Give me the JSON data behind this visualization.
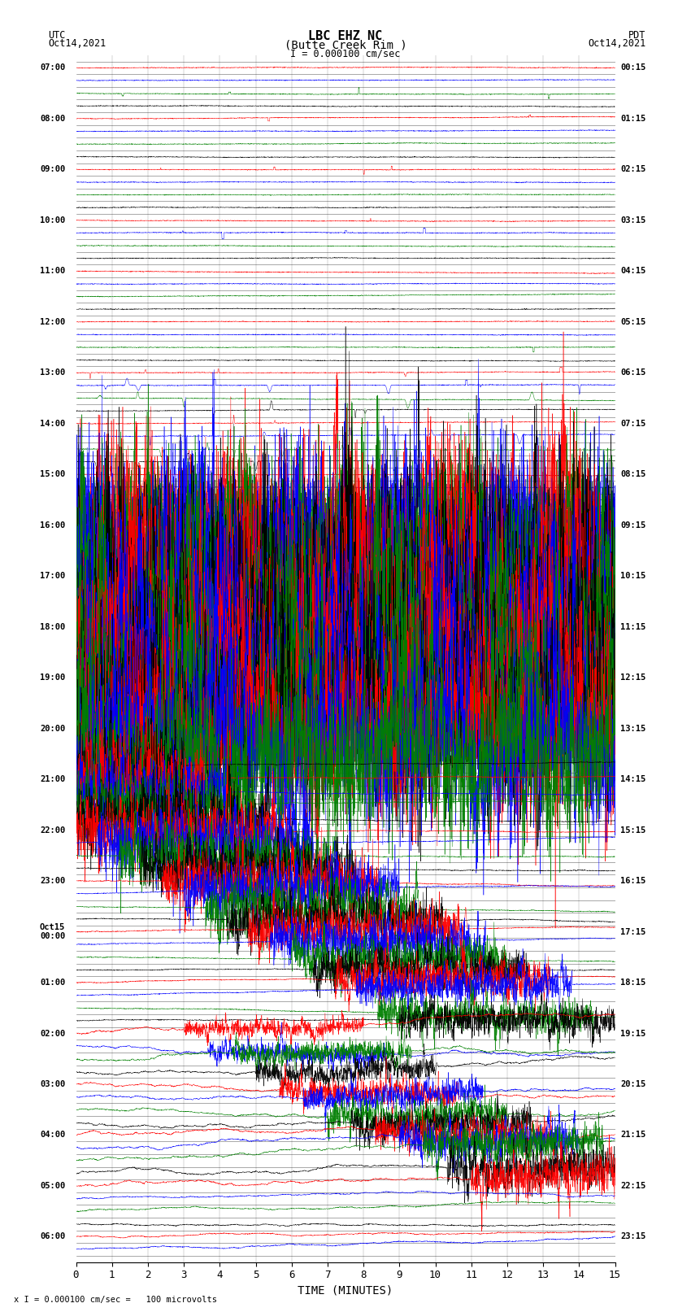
{
  "title_line1": "LBC EHZ NC",
  "title_line2": "(Butte Creek Rim )",
  "scale_label": "I = 0.000100 cm/sec",
  "left_header": "UTC\nOct14,2021",
  "right_header": "PDT\nOct14,2021",
  "footer_note": "x I = 0.000100 cm/sec =   100 microvolts",
  "xlabel": "TIME (MINUTES)",
  "left_times": [
    "07:00",
    "",
    "",
    "",
    "08:00",
    "",
    "",
    "",
    "09:00",
    "",
    "",
    "",
    "10:00",
    "",
    "",
    "",
    "11:00",
    "",
    "",
    "",
    "12:00",
    "",
    "",
    "",
    "13:00",
    "",
    "",
    "",
    "14:00",
    "",
    "",
    "",
    "15:00",
    "",
    "",
    "",
    "16:00",
    "",
    "",
    "",
    "17:00",
    "",
    "",
    "",
    "18:00",
    "",
    "",
    "",
    "19:00",
    "",
    "",
    "",
    "20:00",
    "",
    "",
    "",
    "21:00",
    "",
    "",
    "",
    "22:00",
    "",
    "",
    "",
    "23:00",
    "",
    "",
    "",
    "Oct15\n00:00",
    "",
    "",
    "",
    "01:00",
    "",
    "",
    "",
    "02:00",
    "",
    "",
    "",
    "03:00",
    "",
    "",
    "",
    "04:00",
    "",
    "",
    "",
    "05:00",
    "",
    "",
    "",
    "06:00",
    ""
  ],
  "right_times": [
    "00:15",
    "",
    "",
    "",
    "01:15",
    "",
    "",
    "",
    "02:15",
    "",
    "",
    "",
    "03:15",
    "",
    "",
    "",
    "04:15",
    "",
    "",
    "",
    "05:15",
    "",
    "",
    "",
    "06:15",
    "",
    "",
    "",
    "07:15",
    "",
    "",
    "",
    "08:15",
    "",
    "",
    "",
    "09:15",
    "",
    "",
    "",
    "10:15",
    "",
    "",
    "",
    "11:15",
    "",
    "",
    "",
    "12:15",
    "",
    "",
    "",
    "13:15",
    "",
    "",
    "",
    "14:15",
    "",
    "",
    "",
    "15:15",
    "",
    "",
    "",
    "16:15",
    "",
    "",
    "",
    "17:15",
    "",
    "",
    "",
    "18:15",
    "",
    "",
    "",
    "19:15",
    "",
    "",
    "",
    "20:15",
    "",
    "",
    "",
    "21:15",
    "",
    "",
    "",
    "22:15",
    "",
    "",
    "",
    "23:15",
    ""
  ],
  "n_traces": 94,
  "trace_duration_minutes": 15,
  "colors": [
    "red",
    "blue",
    "green",
    "black"
  ],
  "bg_color": "white",
  "seed": 42
}
